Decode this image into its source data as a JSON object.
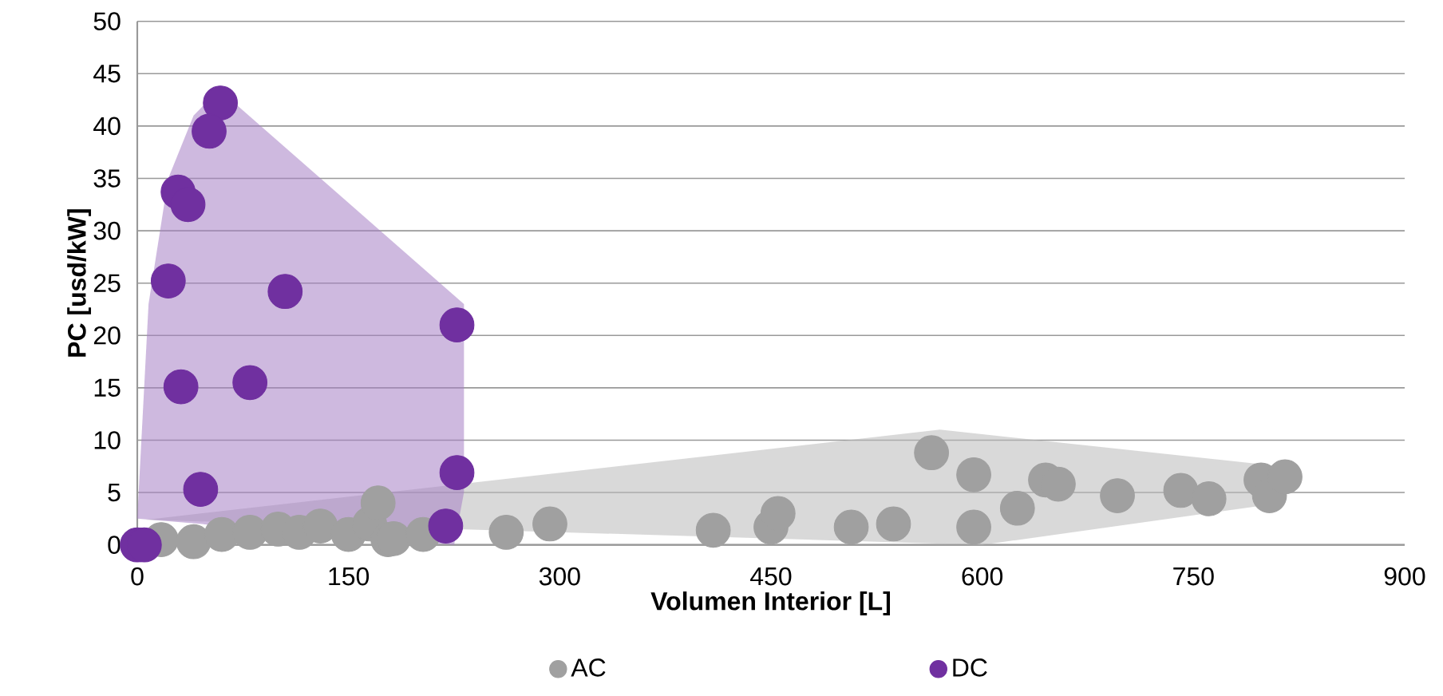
{
  "chart_data": {
    "type": "scatter",
    "xlabel": "Volumen Interior [L]",
    "ylabel": "PC [usd/kW]",
    "xlim": [
      0,
      900
    ],
    "ylim": [
      0,
      50
    ],
    "xticks": [
      0,
      150,
      300,
      450,
      600,
      750,
      900
    ],
    "yticks": [
      0,
      5,
      10,
      15,
      20,
      25,
      30,
      35,
      40,
      45,
      50
    ],
    "grid": "y",
    "legend": "bottom",
    "series": [
      {
        "type": "area",
        "color": "#bababa",
        "x": [
          6,
          570,
          812,
          812,
          600
        ],
        "values": [
          2.4,
          11,
          7.5,
          4,
          0
        ]
      },
      {
        "type": "area",
        "color": "#a680c4",
        "x": [
          0,
          8,
          22,
          40,
          58,
          232,
          232,
          225
        ],
        "values": [
          2.5,
          23,
          35,
          41,
          43.5,
          23,
          5,
          0
        ]
      },
      {
        "name": "AC",
        "marker": "circle",
        "color": "#a0a0a0",
        "x": [
          17,
          40,
          60,
          80,
          100,
          115,
          130,
          150,
          165,
          178,
          171,
          182,
          203,
          215,
          262,
          293,
          409,
          450,
          455,
          507,
          537,
          564,
          594,
          594,
          625,
          645,
          654,
          696,
          741,
          761,
          798,
          804,
          815
        ],
        "values": [
          0.5,
          0.3,
          1,
          1.2,
          1.5,
          1.2,
          1.8,
          1,
          2,
          0.5,
          4,
          0.6,
          1,
          null,
          1.2,
          2,
          1.4,
          1.7,
          3,
          1.7,
          2,
          8.8,
          6.7,
          1.7,
          3.5,
          6.2,
          5.8,
          4.7,
          5.2,
          4.4,
          6.2,
          4.7,
          6.5
        ]
      },
      {
        "name": "DC",
        "marker": "circle",
        "color": "#7030a0",
        "x": [
          0,
          5,
          59,
          51,
          29,
          36,
          22,
          105,
          227,
          31,
          80,
          45,
          227,
          219
        ],
        "values": [
          0,
          0,
          42.2,
          39.5,
          33.7,
          32.5,
          25.2,
          24.2,
          21,
          15.1,
          15.5,
          5.3,
          6.9,
          1.8
        ]
      }
    ]
  }
}
